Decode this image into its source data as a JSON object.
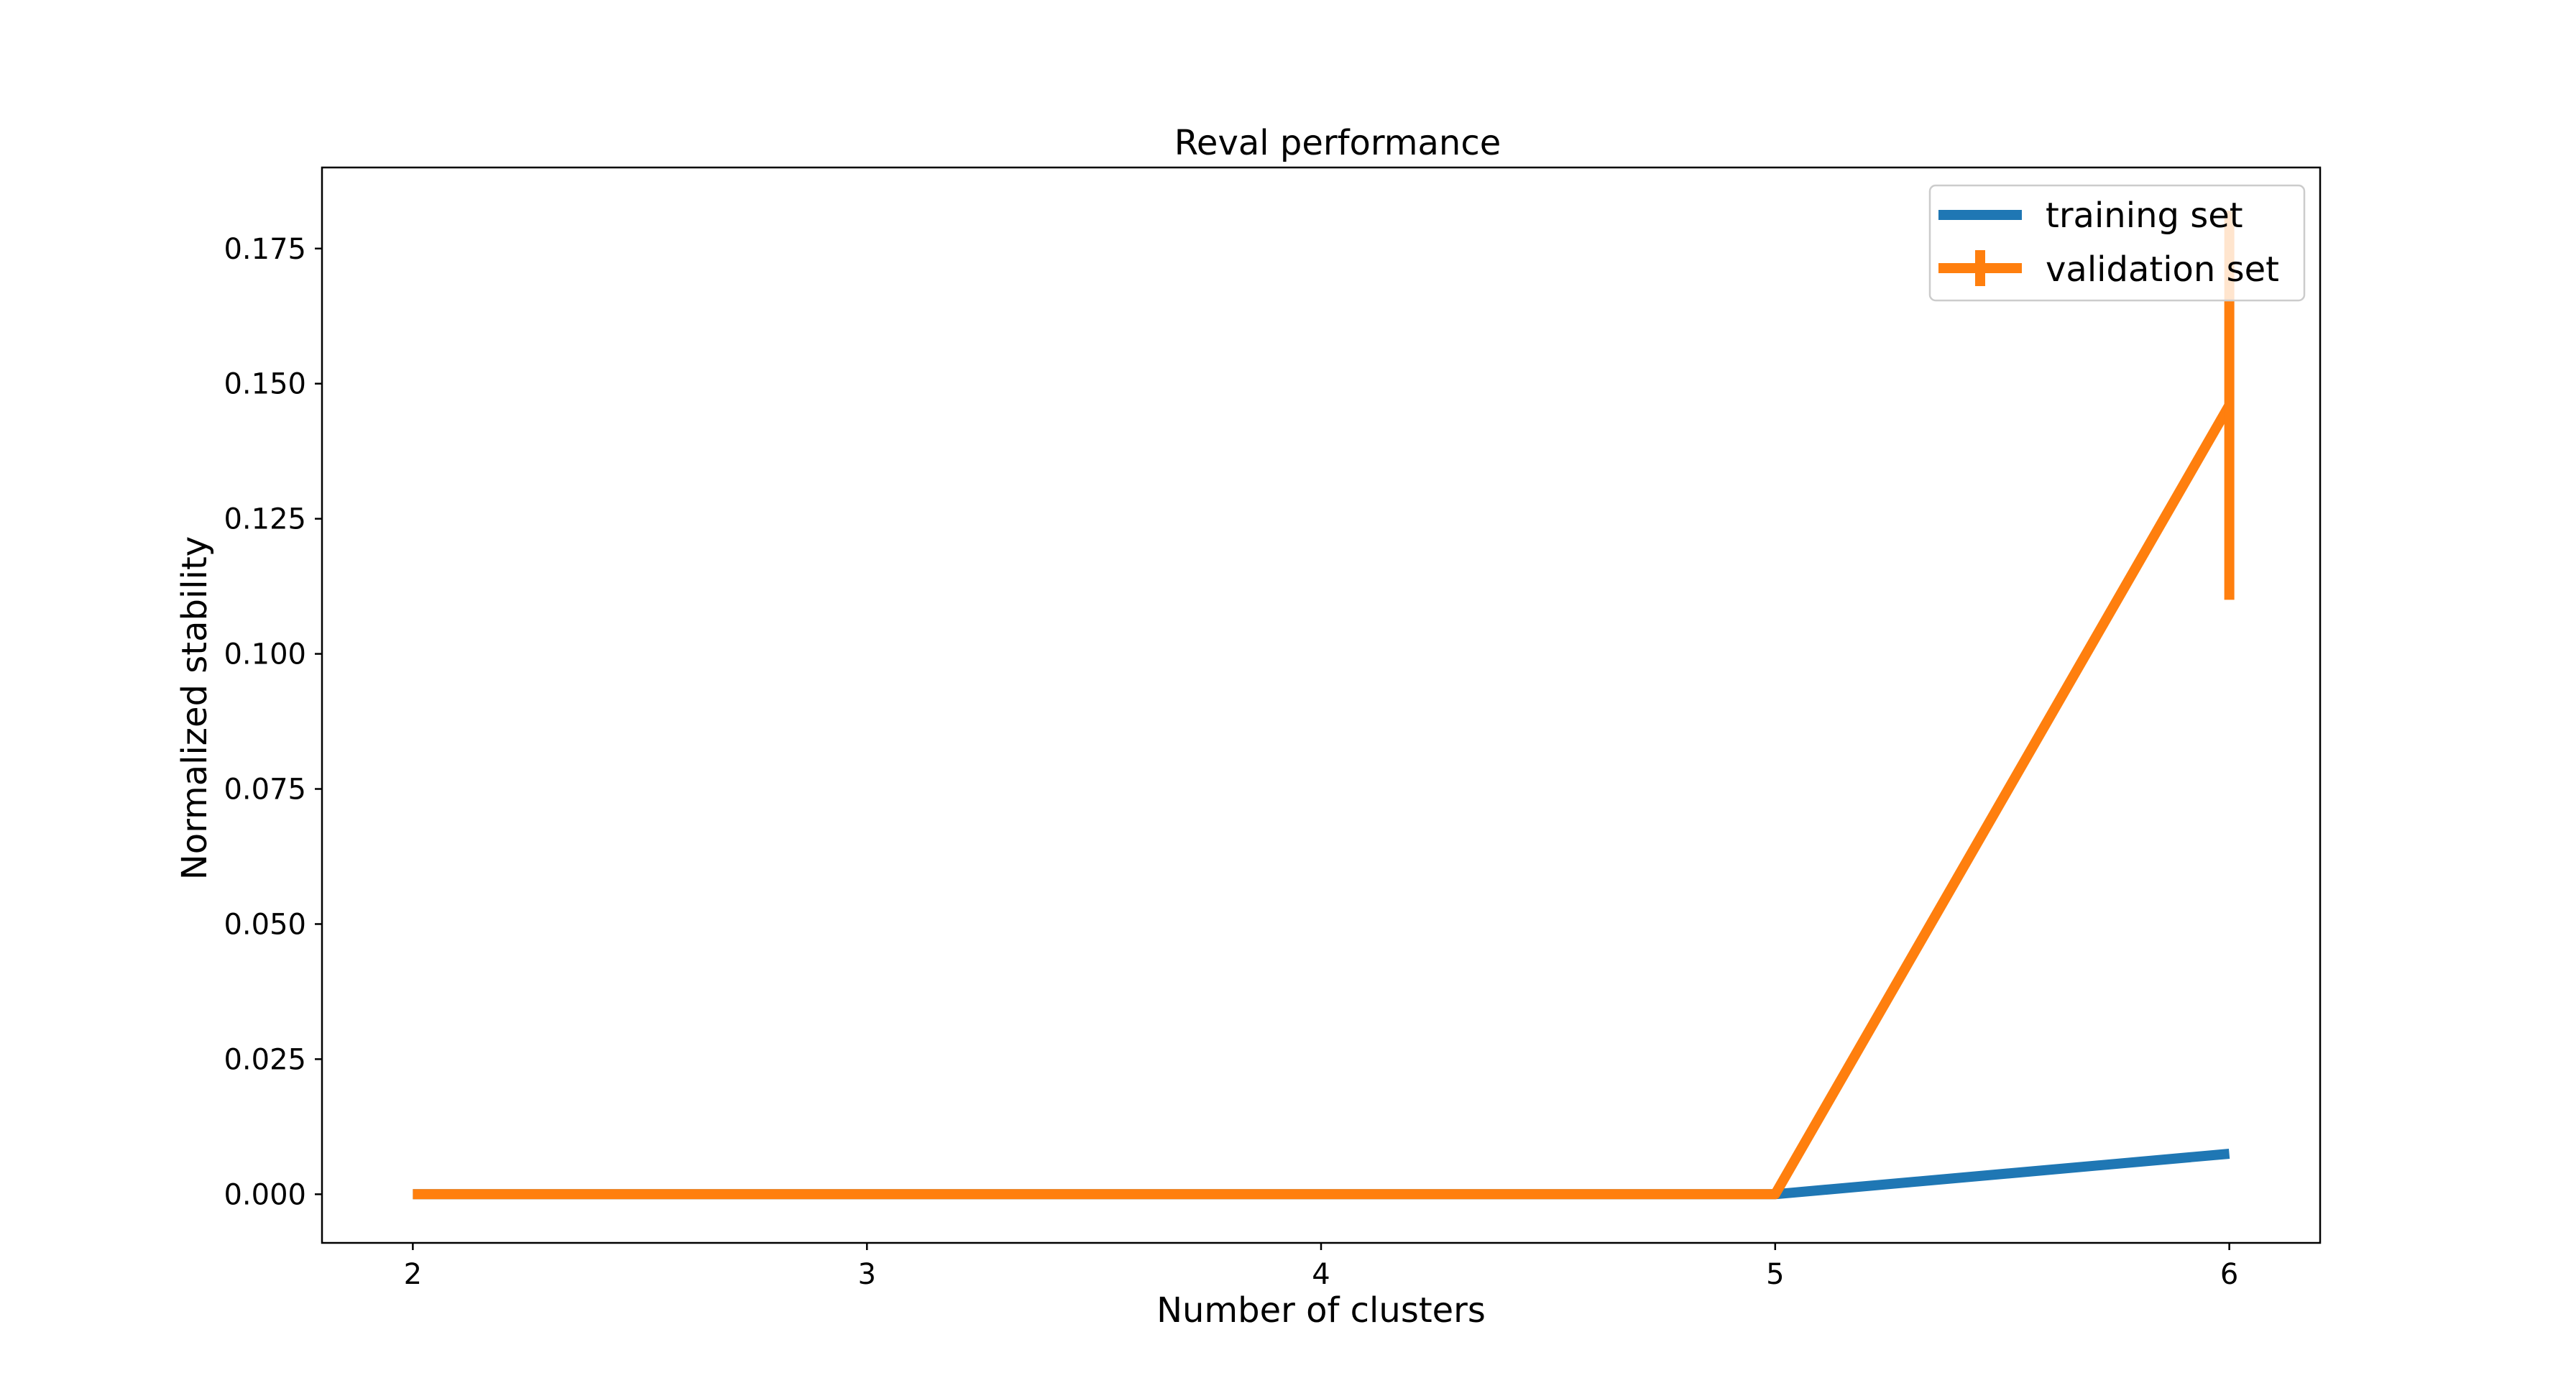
{
  "chart_data": {
    "type": "line",
    "title": "Reval performance",
    "xlabel": "Number of clusters",
    "ylabel": "Normalized stability",
    "x": [
      2,
      3,
      4,
      5,
      6
    ],
    "x_ticks": [
      2,
      3,
      4,
      5,
      6
    ],
    "xlim": [
      1.8,
      6.2
    ],
    "ylim": [
      -0.009,
      0.19
    ],
    "y_ticks": [
      0.0,
      0.025,
      0.05,
      0.075,
      0.1,
      0.125,
      0.15,
      0.175
    ],
    "y_tick_labels": [
      "0.000",
      "0.025",
      "0.050",
      "0.075",
      "0.100",
      "0.125",
      "0.150",
      "0.175"
    ],
    "grid": false,
    "legend_position": "top-right",
    "series": [
      {
        "name": "training set",
        "color": "#1f77b4",
        "values": [
          0.0,
          0.0,
          0.0,
          0.0,
          0.0075
        ],
        "errors": null
      },
      {
        "name": "validation set",
        "color": "#ff7f0e",
        "values": [
          0.0,
          0.0,
          0.0,
          0.0,
          0.146
        ],
        "errors": [
          0.0,
          0.0,
          0.0,
          0.0,
          0.036
        ]
      }
    ]
  }
}
